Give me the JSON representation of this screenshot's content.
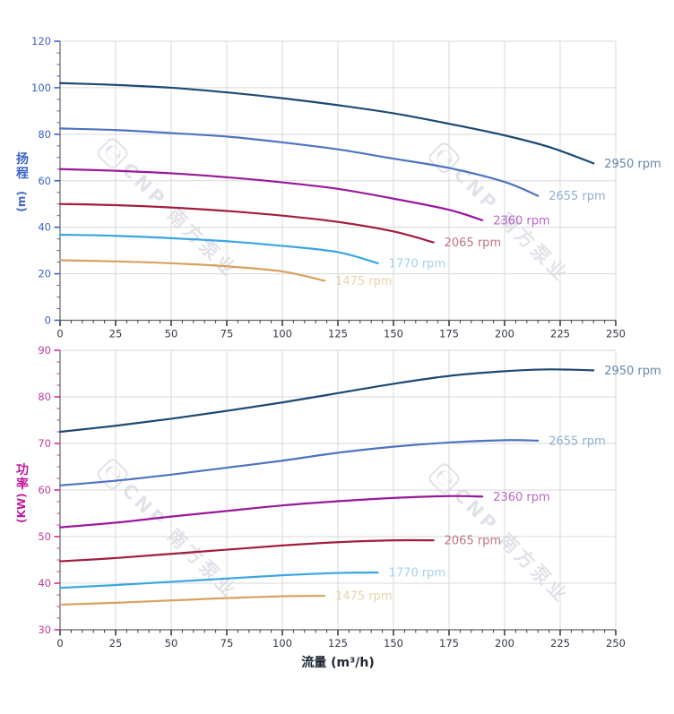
{
  "watermark": {
    "logo_glyph": "℮",
    "text": "CNP 南方泵业"
  },
  "chart_data": [
    {
      "name": "head",
      "type": "line",
      "title": "",
      "ylabel": "扬程 (m)",
      "y_title": {
        "chars": [
          "扬",
          "程"
        ],
        "unit": "(m)",
        "color": "#3c63c8"
      },
      "xlabel": "",
      "xlim": [
        0,
        250
      ],
      "ylim": [
        0,
        120
      ],
      "x_ticks": [
        0,
        25,
        50,
        75,
        100,
        125,
        150,
        175,
        200,
        225,
        250
      ],
      "y_ticks": [
        0,
        20,
        40,
        60,
        80,
        100,
        120
      ],
      "x_minor_step": 5,
      "y_minor_step": 5,
      "grid": true,
      "legend_position": "curve-ends",
      "axis": {
        "grid": "#d9d9d9",
        "spine": "#666666",
        "x_tick": "#3a3f47",
        "x_label": "#333a45",
        "y_tick": "#3c63c8",
        "y_label": "#3c63c8"
      },
      "series": [
        {
          "name": "2950 rpm",
          "color": "#1c4a73",
          "label_color": "#6289ad",
          "points": [
            [
              0,
              102
            ],
            [
              25,
              101.2
            ],
            [
              50,
              100
            ],
            [
              75,
              98
            ],
            [
              100,
              95.5
            ],
            [
              125,
              92.5
            ],
            [
              150,
              89
            ],
            [
              175,
              84.5
            ],
            [
              200,
              79.5
            ],
            [
              220,
              74.5
            ],
            [
              240,
              67.5
            ]
          ]
        },
        {
          "name": "2655 rpm",
          "color": "#4d74c0",
          "label_color": "#8fb0d6",
          "points": [
            [
              0,
              82.5
            ],
            [
              25,
              81.8
            ],
            [
              50,
              80.5
            ],
            [
              75,
              79
            ],
            [
              100,
              76.5
            ],
            [
              125,
              73.5
            ],
            [
              150,
              69.5
            ],
            [
              175,
              65.5
            ],
            [
              200,
              59.5
            ],
            [
              215,
              53.5
            ]
          ]
        },
        {
          "name": "2360 rpm",
          "color": "#99189b",
          "label_color": "#bb67c5",
          "points": [
            [
              0,
              65
            ],
            [
              25,
              64.3
            ],
            [
              50,
              63.2
            ],
            [
              75,
              61.5
            ],
            [
              100,
              59.3
            ],
            [
              125,
              56.5
            ],
            [
              150,
              52.3
            ],
            [
              175,
              47.5
            ],
            [
              190,
              43
            ]
          ]
        },
        {
          "name": "2065 rpm",
          "color": "#a21d3f",
          "label_color": "#bf7583",
          "points": [
            [
              0,
              50
            ],
            [
              25,
              49.5
            ],
            [
              50,
              48.5
            ],
            [
              75,
              47
            ],
            [
              100,
              45
            ],
            [
              125,
              42.3
            ],
            [
              150,
              38.2
            ],
            [
              168,
              33.5
            ]
          ]
        },
        {
          "name": "1770 rpm",
          "color": "#38a6e3",
          "label_color": "#a5d3ee",
          "points": [
            [
              0,
              36.8
            ],
            [
              25,
              36.3
            ],
            [
              50,
              35.3
            ],
            [
              75,
              34
            ],
            [
              100,
              32
            ],
            [
              125,
              29.3
            ],
            [
              143,
              24.5
            ]
          ]
        },
        {
          "name": "1475 rpm",
          "color": "#d8a260",
          "label_color": "#ebd2ab",
          "points": [
            [
              0,
              25.8
            ],
            [
              25,
              25.3
            ],
            [
              50,
              24.5
            ],
            [
              75,
              23.2
            ],
            [
              100,
              21
            ],
            [
              119,
              17
            ]
          ]
        }
      ]
    },
    {
      "name": "power",
      "type": "line",
      "title": "",
      "ylabel": "功率 (KW)",
      "y_title": {
        "chars": [
          "功",
          "率"
        ],
        "unit": "(KW)",
        "color": "#c01a9e"
      },
      "xlabel": "流量 (m³/h)",
      "xlim": [
        0,
        250
      ],
      "ylim": [
        30,
        90
      ],
      "x_ticks": [
        0,
        25,
        50,
        75,
        100,
        125,
        150,
        175,
        200,
        225,
        250
      ],
      "y_ticks": [
        30,
        40,
        50,
        60,
        70,
        80,
        90
      ],
      "x_minor_step": 5,
      "y_minor_step": 2.5,
      "grid": true,
      "legend_position": "curve-ends",
      "axis": {
        "grid": "#d9d9d9",
        "spine": "#666666",
        "x_tick": "#3a3f47",
        "x_label": "#333a45",
        "y_tick": "#d22fa4",
        "y_label": "#bd3f9d"
      },
      "series": [
        {
          "name": "2950 rpm",
          "color": "#1c4a73",
          "label_color": "#6289ad",
          "points": [
            [
              0,
              72.5
            ],
            [
              25,
              73.8
            ],
            [
              50,
              75.3
            ],
            [
              75,
              77
            ],
            [
              100,
              78.8
            ],
            [
              125,
              80.8
            ],
            [
              150,
              82.8
            ],
            [
              175,
              84.5
            ],
            [
              200,
              85.5
            ],
            [
              220,
              85.9
            ],
            [
              240,
              85.7
            ]
          ]
        },
        {
          "name": "2655 rpm",
          "color": "#4d74c0",
          "label_color": "#8fb0d6",
          "points": [
            [
              0,
              61
            ],
            [
              25,
              62
            ],
            [
              50,
              63.3
            ],
            [
              75,
              64.8
            ],
            [
              100,
              66.3
            ],
            [
              125,
              68
            ],
            [
              150,
              69.3
            ],
            [
              175,
              70.2
            ],
            [
              200,
              70.7
            ],
            [
              215,
              70.6
            ]
          ]
        },
        {
          "name": "2360 rpm",
          "color": "#99189b",
          "label_color": "#bb67c5",
          "points": [
            [
              0,
              52
            ],
            [
              25,
              53
            ],
            [
              50,
              54.3
            ],
            [
              75,
              55.5
            ],
            [
              100,
              56.7
            ],
            [
              125,
              57.6
            ],
            [
              150,
              58.3
            ],
            [
              175,
              58.7
            ],
            [
              190,
              58.6
            ]
          ]
        },
        {
          "name": "2065 rpm",
          "color": "#a21d3f",
          "label_color": "#bf7583",
          "points": [
            [
              0,
              44.7
            ],
            [
              25,
              45.4
            ],
            [
              50,
              46.3
            ],
            [
              75,
              47.2
            ],
            [
              100,
              48.1
            ],
            [
              125,
              48.8
            ],
            [
              150,
              49.2
            ],
            [
              168,
              49.2
            ]
          ]
        },
        {
          "name": "1770 rpm",
          "color": "#38a6e3",
          "label_color": "#a5d3ee",
          "points": [
            [
              0,
              39
            ],
            [
              25,
              39.6
            ],
            [
              50,
              40.3
            ],
            [
              75,
              41
            ],
            [
              100,
              41.7
            ],
            [
              125,
              42.2
            ],
            [
              143,
              42.3
            ]
          ]
        },
        {
          "name": "1475 rpm",
          "color": "#d8a260",
          "label_color": "#ebd2ab",
          "points": [
            [
              0,
              35.4
            ],
            [
              25,
              35.8
            ],
            [
              50,
              36.3
            ],
            [
              75,
              36.8
            ],
            [
              100,
              37.2
            ],
            [
              119,
              37.3
            ]
          ]
        }
      ]
    }
  ]
}
